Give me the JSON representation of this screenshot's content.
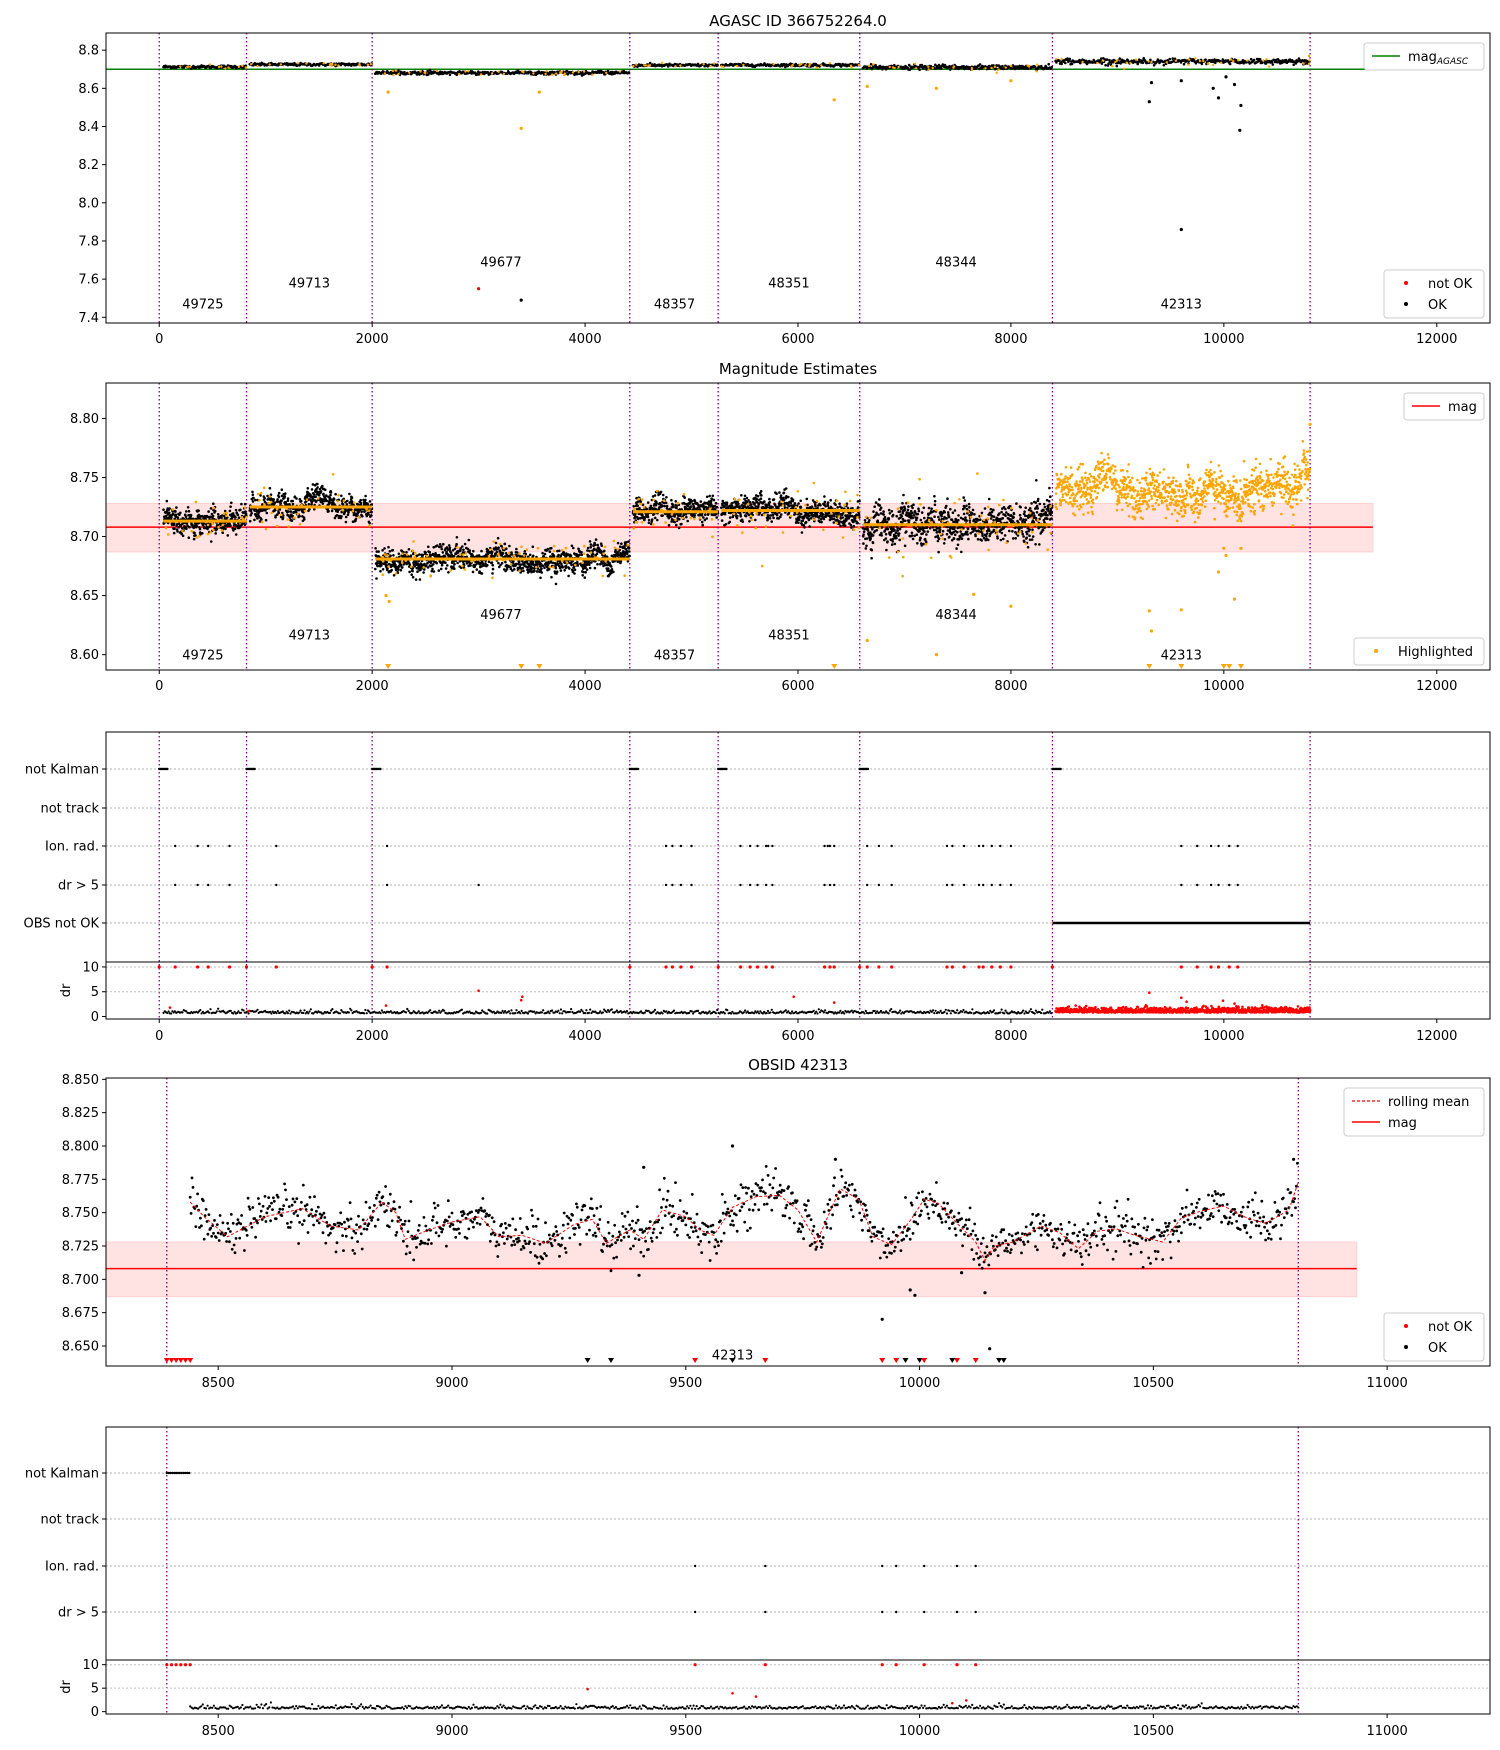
{
  "chart_data": [
    {
      "type": "scatter",
      "title": "AGASC ID 366752264.0",
      "xlim": [
        -500,
        12500
      ],
      "ylim": [
        7.37,
        8.89
      ],
      "xticks": [
        "0",
        "2000",
        "4000",
        "6000",
        "8000",
        "10000",
        "12000"
      ],
      "yticks": [
        "7.4",
        "7.6",
        "7.8",
        "8.0",
        "8.2",
        "8.4",
        "8.6",
        "8.8"
      ],
      "reference_line": {
        "name": "mag",
        "name_sub": "AGASC",
        "value": 8.7,
        "x_range": [
          -500,
          11400
        ],
        "color": "#008000"
      },
      "obs_boundaries": [
        0,
        820,
        2000,
        4420,
        5250,
        6580,
        8390,
        10810
      ],
      "obsid_labels": [
        {
          "text": "49725",
          "x": 410,
          "y": 7.445
        },
        {
          "text": "49713",
          "x": 1410,
          "y": 7.555
        },
        {
          "text": "49677",
          "x": 3210,
          "y": 7.665
        },
        {
          "text": "48357",
          "x": 4840,
          "y": 7.445
        },
        {
          "text": "48351",
          "x": 5915,
          "y": 7.555
        },
        {
          "text": "48344",
          "x": 7485,
          "y": 7.665
        },
        {
          "text": "42313",
          "x": 9600,
          "y": 7.445
        }
      ],
      "segments": [
        {
          "x": [
            40,
            820
          ],
          "mean": 8.713,
          "spread": 0.006
        },
        {
          "x": [
            850,
            2000
          ],
          "mean": 8.725,
          "spread": 0.006
        },
        {
          "x": [
            2030,
            4420
          ],
          "mean": 8.681,
          "spread": 0.007
        },
        {
          "x": [
            4450,
            5250
          ],
          "mean": 8.721,
          "spread": 0.006
        },
        {
          "x": [
            5280,
            6580
          ],
          "mean": 8.722,
          "spread": 0.006
        },
        {
          "x": [
            6610,
            8390
          ],
          "mean": 8.71,
          "spread": 0.01
        },
        {
          "x": [
            8420,
            10810
          ],
          "mean": 8.741,
          "spread": 0.012,
          "highlighted": true
        }
      ],
      "outliers_highlighted": [
        {
          "x": 2150,
          "y": 8.58
        },
        {
          "x": 3400,
          "y": 8.39
        },
        {
          "x": 3570,
          "y": 8.58
        },
        {
          "x": 6340,
          "y": 8.54
        },
        {
          "x": 6650,
          "y": 8.61
        },
        {
          "x": 7300,
          "y": 8.6
        },
        {
          "x": 8000,
          "y": 8.64
        }
      ],
      "outliers_ok": [
        {
          "x": 3400,
          "y": 7.49
        },
        {
          "x": 9300,
          "y": 8.53
        },
        {
          "x": 9320,
          "y": 8.63
        },
        {
          "x": 9600,
          "y": 8.64
        },
        {
          "x": 9600,
          "y": 7.86
        },
        {
          "x": 9900,
          "y": 8.6
        },
        {
          "x": 9950,
          "y": 8.55
        },
        {
          "x": 10020,
          "y": 8.66
        },
        {
          "x": 10100,
          "y": 8.62
        },
        {
          "x": 10160,
          "y": 8.51
        },
        {
          "x": 10150,
          "y": 8.38
        }
      ],
      "outliers_not_ok": [
        {
          "x": 3000,
          "y": 7.55
        }
      ],
      "legend": [
        {
          "label": "mag",
          "sub": "AGASC",
          "marker": "line",
          "color": "#008000",
          "position": "upper right"
        },
        {
          "label": "not OK",
          "marker": "dot",
          "color": "#ff0000",
          "position": "lower right"
        },
        {
          "label": "OK",
          "marker": "dot",
          "color": "#000000",
          "position": "lower right"
        }
      ]
    },
    {
      "type": "scatter",
      "title": "Magnitude Estimates",
      "xlim": [
        -500,
        12500
      ],
      "ylim": [
        8.587,
        8.83
      ],
      "xticks": [
        "0",
        "2000",
        "4000",
        "6000",
        "8000",
        "10000",
        "12000"
      ],
      "yticks": [
        "8.60",
        "8.65",
        "8.70",
        "8.75",
        "8.80"
      ],
      "mag_line": {
        "value": 8.708,
        "band": [
          8.687,
          8.728
        ],
        "x_range": [
          -500,
          11400
        ],
        "color": "#ff0000"
      },
      "obs_boundaries": [
        0,
        820,
        2000,
        4420,
        5250,
        6580,
        8390,
        10810
      ],
      "obsid_labels": [
        {
          "text": "49725",
          "x": 410,
          "y": 8.596
        },
        {
          "text": "49713",
          "x": 1410,
          "y": 8.613
        },
        {
          "text": "49677",
          "x": 3210,
          "y": 8.63
        },
        {
          "text": "48357",
          "x": 4840,
          "y": 8.596
        },
        {
          "text": "48351",
          "x": 5915,
          "y": 8.613
        },
        {
          "text": "48344",
          "x": 7485,
          "y": 8.63
        },
        {
          "text": "42313",
          "x": 9600,
          "y": 8.596
        }
      ],
      "segments": [
        {
          "x": [
            40,
            820
          ],
          "mean": 8.713,
          "spread": 0.007
        },
        {
          "x": [
            850,
            2000
          ],
          "mean": 8.725,
          "spread": 0.007
        },
        {
          "x": [
            2030,
            4420
          ],
          "mean": 8.681,
          "spread": 0.007
        },
        {
          "x": [
            4450,
            5250
          ],
          "mean": 8.721,
          "spread": 0.007
        },
        {
          "x": [
            5280,
            6580
          ],
          "mean": 8.722,
          "spread": 0.007
        },
        {
          "x": [
            6610,
            8390
          ],
          "mean": 8.71,
          "spread": 0.011
        },
        {
          "x": [
            8420,
            10810
          ],
          "mean": 8.741,
          "spread": 0.012,
          "highlighted": true
        }
      ],
      "highlight_extra": [
        {
          "x": 2130,
          "y": 8.65
        },
        {
          "x": 2160,
          "y": 8.645
        },
        {
          "x": 6650,
          "y": 8.612
        },
        {
          "x": 7300,
          "y": 8.6
        },
        {
          "x": 7650,
          "y": 8.651
        },
        {
          "x": 8000,
          "y": 8.641
        },
        {
          "x": 9300,
          "y": 8.637
        },
        {
          "x": 9320,
          "y": 8.62
        },
        {
          "x": 9600,
          "y": 8.638
        },
        {
          "x": 10000,
          "y": 8.69
        },
        {
          "x": 10020,
          "y": 8.684
        },
        {
          "x": 9950,
          "y": 8.67
        },
        {
          "x": 10100,
          "y": 8.647
        },
        {
          "x": 10160,
          "y": 8.69
        },
        {
          "x": 10810,
          "y": 8.795
        }
      ],
      "below_axis_markers": [
        2150,
        3400,
        3570,
        6340,
        9300,
        9600,
        10000,
        10050,
        10160
      ],
      "legend": [
        {
          "label": "mag",
          "marker": "line",
          "color": "#ff0000",
          "position": "upper right"
        },
        {
          "label": "Highlighted",
          "marker": "dot",
          "color": "#ffa500",
          "position": "lower right"
        }
      ]
    },
    {
      "type": "scatter",
      "xlim": [
        -500,
        12500
      ],
      "xticks": [
        "0",
        "2000",
        "4000",
        "6000",
        "8000",
        "10000",
        "12000"
      ],
      "flag_rows": [
        "not Kalman",
        "not track",
        "Ion. rad.",
        "dr > 5",
        "OBS not OK"
      ],
      "obs_boundaries": [
        0,
        820,
        2000,
        4420,
        5250,
        6580,
        8390,
        10810
      ],
      "not_kalman_x": [
        0,
        820,
        2000,
        4420,
        5250,
        6580,
        8390
      ],
      "ion_rad_x": [
        150,
        360,
        460,
        660,
        1100,
        2140,
        4760,
        4820,
        4900,
        5000,
        5460,
        5550,
        5620,
        5700,
        5720,
        5760,
        6250,
        6280,
        6300,
        6340,
        6650,
        6760,
        6880,
        7400,
        7450,
        7560,
        7700,
        7740,
        7820,
        7900,
        8000,
        9600,
        9750,
        9880,
        9950,
        10050,
        10130
      ],
      "dr5_x": [
        150,
        360,
        460,
        660,
        1100,
        2140,
        3000,
        4760,
        4820,
        4900,
        5000,
        5460,
        5550,
        5620,
        5700,
        5760,
        6250,
        6300,
        6340,
        6650,
        6760,
        6880,
        7400,
        7450,
        7560,
        7700,
        7740,
        7820,
        7900,
        8000,
        9600,
        9750,
        9880,
        9950,
        10050,
        10130
      ],
      "obs_not_ok_x": [
        8390,
        10810
      ],
      "dr_panel": {
        "ylabel": "dr",
        "yticks": [
          "0",
          "5",
          "10"
        ],
        "ylim": [
          -0.5,
          11
        ],
        "baseline_ok_segments": [
          [
            40,
            8390
          ]
        ],
        "baseline_not_ok_segments": [
          [
            8420,
            10810
          ]
        ],
        "dr_spikes": [
          {
            "x": 100,
            "y": 1.8
          },
          {
            "x": 840,
            "y": 1.1
          },
          {
            "x": 2130,
            "y": 2.2
          },
          {
            "x": 3000,
            "y": 5.2
          },
          {
            "x": 3400,
            "y": 3.3
          },
          {
            "x": 3410,
            "y": 4.0
          },
          {
            "x": 5960,
            "y": 4.0
          },
          {
            "x": 6340,
            "y": 2.8
          },
          {
            "x": 9300,
            "y": 4.8
          },
          {
            "x": 9600,
            "y": 3.8
          },
          {
            "x": 9650,
            "y": 3.0
          },
          {
            "x": 10100,
            "y": 2.6
          }
        ],
        "dr_top_markers": [
          0,
          820,
          2000,
          4420,
          5250,
          6580,
          8390,
          150,
          360,
          460,
          660,
          1100,
          2140,
          4760,
          4820,
          4900,
          5000,
          5460,
          5550,
          5620,
          5700,
          5760,
          6250,
          6300,
          6340,
          6650,
          6760,
          6880,
          7400,
          7450,
          7560,
          7700,
          7740,
          7820,
          7900,
          8000,
          9600,
          9750,
          9880,
          9950,
          10050,
          10130
        ]
      }
    },
    {
      "type": "line",
      "title": "OBSID 42313",
      "xlim": [
        8260,
        11220
      ],
      "ylim": [
        8.635,
        8.851
      ],
      "xticks": [
        "8500",
        "9000",
        "9500",
        "10000",
        "10500",
        "11000"
      ],
      "yticks": [
        "8.650",
        "8.675",
        "8.700",
        "8.725",
        "8.750",
        "8.775",
        "8.800",
        "8.825",
        "8.850"
      ],
      "obs_boundaries": [
        8390,
        10810
      ],
      "mag_line": {
        "value": 8.708,
        "band": [
          8.687,
          8.728
        ],
        "x_range": [
          8260,
          10935
        ],
        "color": "#ff0000"
      },
      "rolling_mean": {
        "x": [
          8440,
          8470,
          8520,
          8600,
          8680,
          8740,
          8800,
          8850,
          8880,
          8900,
          8950,
          9000,
          9060,
          9100,
          9150,
          9200,
          9260,
          9300,
          9330,
          9380,
          9410,
          9450,
          9500,
          9530,
          9560,
          9600,
          9650,
          9700,
          9740,
          9780,
          9830,
          9870,
          9900,
          9940,
          9980,
          10010,
          10040,
          10080,
          10120,
          10140,
          10160,
          10200,
          10260,
          10300,
          10340,
          10380,
          10420,
          10460,
          10520,
          10560,
          10600,
          10650,
          10700,
          10740,
          10790,
          10810
        ],
        "y": [
          8.758,
          8.747,
          8.732,
          8.747,
          8.753,
          8.74,
          8.737,
          8.758,
          8.75,
          8.73,
          8.737,
          8.743,
          8.747,
          8.732,
          8.733,
          8.727,
          8.741,
          8.745,
          8.727,
          8.737,
          8.73,
          8.752,
          8.747,
          8.737,
          8.733,
          8.754,
          8.762,
          8.763,
          8.752,
          8.728,
          8.768,
          8.76,
          8.732,
          8.726,
          8.744,
          8.76,
          8.757,
          8.742,
          8.728,
          8.714,
          8.725,
          8.728,
          8.74,
          8.735,
          8.723,
          8.736,
          8.738,
          8.733,
          8.728,
          8.746,
          8.751,
          8.755,
          8.746,
          8.742,
          8.752,
          8.773
        ]
      },
      "outliers_ok": [
        {
          "x": 9400,
          "y": 8.703
        },
        {
          "x": 9410,
          "y": 8.784
        },
        {
          "x": 9600,
          "y": 8.8
        },
        {
          "x": 9820,
          "y": 8.79
        },
        {
          "x": 9920,
          "y": 8.67
        },
        {
          "x": 9980,
          "y": 8.692
        },
        {
          "x": 9990,
          "y": 8.688
        },
        {
          "x": 10090,
          "y": 8.705
        },
        {
          "x": 10140,
          "y": 8.69
        },
        {
          "x": 10150,
          "y": 8.648
        },
        {
          "x": 10800,
          "y": 8.79
        }
      ],
      "obsid_label": {
        "text": "42313",
        "x": 9600,
        "y": 8.64
      },
      "bottom_markers_not_ok": [
        8390,
        8400,
        8410,
        8420,
        8430,
        8440,
        9520,
        9670,
        9920,
        9950,
        10010,
        10080,
        10120
      ],
      "bottom_markers_ok": [
        9290,
        9340,
        9600,
        9970,
        10000,
        10070,
        10170,
        10180
      ],
      "legend": [
        {
          "label": "rolling mean",
          "marker": "dashed",
          "color": "#ff0000",
          "position": "upper right"
        },
        {
          "label": "mag",
          "marker": "line",
          "color": "#ff0000",
          "position": "upper right"
        },
        {
          "label": "not OK",
          "marker": "dot",
          "color": "#ff0000",
          "position": "lower right"
        },
        {
          "label": "OK",
          "marker": "dot",
          "color": "#000000",
          "position": "lower right"
        }
      ]
    },
    {
      "type": "scatter",
      "xlim": [
        8260,
        11220
      ],
      "xticks": [
        "8500",
        "9000",
        "9500",
        "10000",
        "10500",
        "11000"
      ],
      "flag_rows": [
        "not Kalman",
        "not track",
        "Ion. rad.",
        "dr > 5"
      ],
      "obs_boundaries": [
        8390,
        10810
      ],
      "not_kalman_range": [
        8390,
        8440
      ],
      "ion_rad_x": [
        9520,
        9670,
        9920,
        9950,
        10010,
        10080,
        10120
      ],
      "dr5_x": [
        9520,
        9670,
        9920,
        9950,
        10010,
        10080,
        10120
      ],
      "dr_panel": {
        "ylabel": "dr",
        "yticks": [
          "0",
          "5",
          "10"
        ],
        "ylim": [
          -0.5,
          11
        ],
        "baseline_ok_segments": [
          [
            8440,
            10810
          ]
        ],
        "dr_spikes": [
          {
            "x": 9290,
            "y": 4.8
          },
          {
            "x": 9600,
            "y": 3.9
          },
          {
            "x": 9650,
            "y": 3.2
          },
          {
            "x": 10100,
            "y": 2.4
          },
          {
            "x": 10070,
            "y": 1.8
          }
        ],
        "dr_top_markers_not_ok": [
          8390,
          8400,
          8410,
          8420,
          8430,
          8440,
          9520,
          9670,
          9920,
          9950,
          10010,
          10080,
          10120
        ]
      }
    }
  ]
}
